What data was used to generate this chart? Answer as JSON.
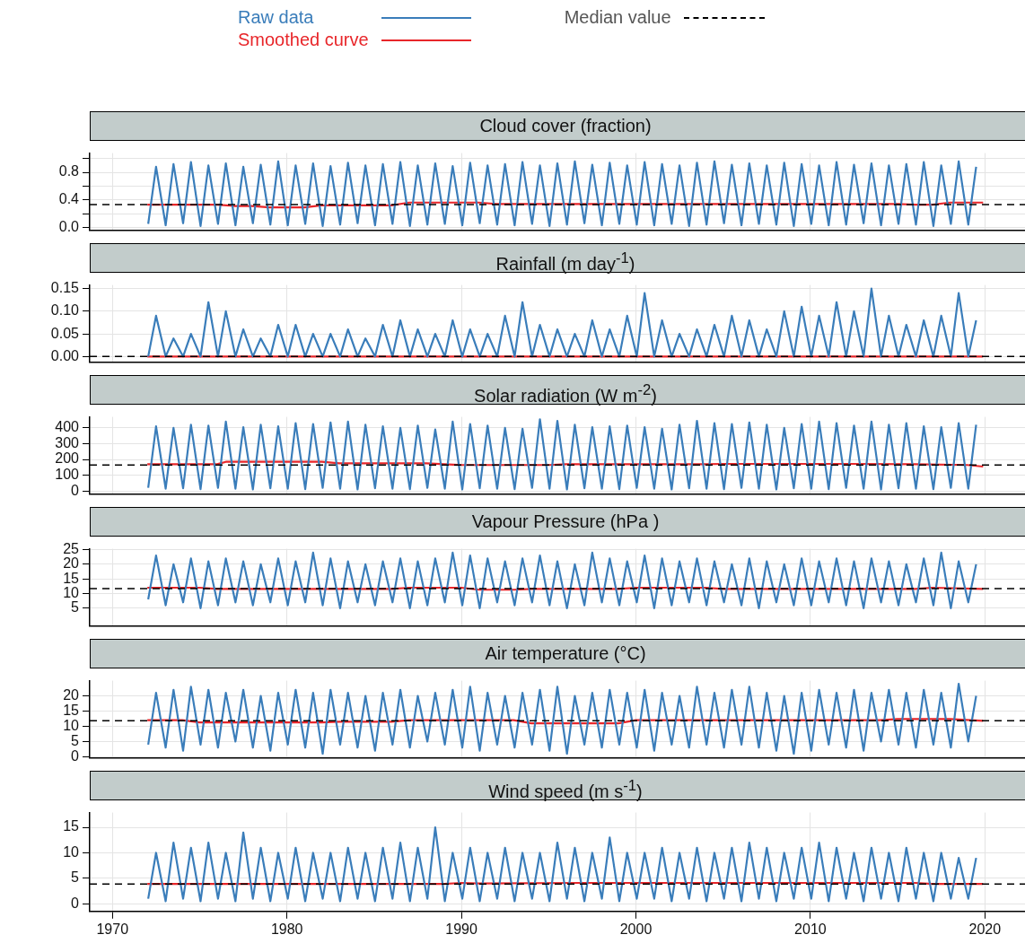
{
  "chart_data": [
    {
      "type": "line",
      "title": "Cloud cover (fraction)",
      "legend": "top",
      "grid": true,
      "tick_labels": "y",
      "xlim": [
        1968.7,
        2022.3
      ],
      "xticks": [
        1970,
        1980,
        1990,
        2000,
        2010,
        2020
      ],
      "ylim": [
        -0.04,
        1.08
      ],
      "yticks": [
        {
          "value": 0,
          "label": "0.0"
        },
        {
          "value": 0.2,
          "label": null
        },
        {
          "value": 0.4,
          "label": "0.4"
        },
        {
          "value": 0.6,
          "label": null
        },
        {
          "value": 0.8,
          "label": "0.8"
        },
        {
          "value": 1.0,
          "label": null
        }
      ],
      "x": [
        1972.05,
        1972.5,
        1973.05,
        1973.5,
        1974.05,
        1974.5,
        1975.05,
        1975.5,
        1976.05,
        1976.5,
        1977.05,
        1977.5,
        1978.05,
        1978.5,
        1979.05,
        1979.5,
        1980.05,
        1980.5,
        1981.05,
        1981.5,
        1982.05,
        1982.5,
        1983.05,
        1983.5,
        1984.05,
        1984.5,
        1985.05,
        1985.5,
        1986.05,
        1986.5,
        1987.05,
        1987.5,
        1988.05,
        1988.5,
        1989.05,
        1989.5,
        1990.05,
        1990.5,
        1991.05,
        1991.5,
        1992.05,
        1992.5,
        1993.05,
        1993.5,
        1994.05,
        1994.5,
        1995.05,
        1995.5,
        1996.05,
        1996.5,
        1997.05,
        1997.5,
        1998.05,
        1998.5,
        1999.05,
        1999.5,
        2000.05,
        2000.5,
        2001.05,
        2001.5,
        2002.05,
        2002.5,
        2003.05,
        2003.5,
        2004.05,
        2004.5,
        2005.05,
        2005.5,
        2006.05,
        2006.5,
        2007.05,
        2007.5,
        2008.05,
        2008.5,
        2009.05,
        2009.5,
        2010.05,
        2010.5,
        2011.05,
        2011.5,
        2012.05,
        2012.5,
        2013.05,
        2013.5,
        2014.05,
        2014.5,
        2015.05,
        2015.5,
        2016.05,
        2016.5,
        2017.05,
        2017.5,
        2018.05,
        2018.5,
        2019.05,
        2019.5
      ],
      "series": [
        {
          "name": "Raw data",
          "color": "#3a7dba",
          "values": [
            0.05,
            0.88,
            0.03,
            0.92,
            0.06,
            0.95,
            0.02,
            0.9,
            0.05,
            0.93,
            0.03,
            0.88,
            0.06,
            0.91,
            0.04,
            0.96,
            0.03,
            0.9,
            0.05,
            0.93,
            0.02,
            0.89,
            0.04,
            0.94,
            0.06,
            0.9,
            0.03,
            0.92,
            0.05,
            0.95,
            0.02,
            0.9,
            0.04,
            0.93,
            0.05,
            0.89,
            0.03,
            0.94,
            0.06,
            0.9,
            0.04,
            0.92,
            0.03,
            0.95,
            0.05,
            0.9,
            0.02,
            0.93,
            0.04,
            0.96,
            0.06,
            0.91,
            0.03,
            0.94,
            0.05,
            0.9,
            0.04,
            0.95,
            0.03,
            0.92,
            0.05,
            0.9,
            0.02,
            0.94,
            0.04,
            0.96,
            0.06,
            0.91,
            0.03,
            0.93,
            0.05,
            0.9,
            0.04,
            0.94,
            0.02,
            0.92,
            0.05,
            0.9,
            0.03,
            0.95,
            0.04,
            0.91,
            0.06,
            0.93,
            0.03,
            0.9,
            0.05,
            0.92,
            0.04,
            0.95,
            0.02,
            0.9,
            0.05,
            0.96,
            0.04,
            0.88
          ]
        },
        {
          "name": "Smoothed curve",
          "color": "#e8262a",
          "x": [
            1972,
            1976,
            1977,
            1978,
            1979,
            1981,
            1982,
            1986,
            1987,
            1991,
            1992,
            2015,
            2016,
            2017,
            2018,
            2019.9
          ],
          "values": [
            0.33,
            0.33,
            0.31,
            0.31,
            0.29,
            0.29,
            0.32,
            0.32,
            0.36,
            0.36,
            0.34,
            0.34,
            0.33,
            0.33,
            0.36,
            0.36
          ]
        }
      ],
      "ref_lines": [
        {
          "axis": "y",
          "value": 0.33,
          "label": "Median value",
          "color": "#000000",
          "line_style": "dashed"
        }
      ]
    },
    {
      "type": "line",
      "title": "Rainfall (m day$^{-1}$)",
      "grid": true,
      "tick_labels": "y",
      "xlim": [
        1968.7,
        2022.3
      ],
      "xticks": [
        1970,
        1980,
        1990,
        2000,
        2010,
        2020
      ],
      "ylim": [
        -0.012,
        0.158
      ],
      "yticks": [
        {
          "value": 0,
          "label": "0.00"
        },
        {
          "value": 0.05,
          "label": "0.05"
        },
        {
          "value": 0.1,
          "label": "0.10"
        },
        {
          "value": 0.15,
          "label": "0.15"
        }
      ],
      "x": [
        1972.05,
        1972.5,
        1973.05,
        1973.5,
        1974.05,
        1974.5,
        1975.05,
        1975.5,
        1976.05,
        1976.5,
        1977.05,
        1977.5,
        1978.05,
        1978.5,
        1979.05,
        1979.5,
        1980.05,
        1980.5,
        1981.05,
        1981.5,
        1982.05,
        1982.5,
        1983.05,
        1983.5,
        1984.05,
        1984.5,
        1985.05,
        1985.5,
        1986.05,
        1986.5,
        1987.05,
        1987.5,
        1988.05,
        1988.5,
        1989.05,
        1989.5,
        1990.05,
        1990.5,
        1991.05,
        1991.5,
        1992.05,
        1992.5,
        1993.05,
        1993.5,
        1994.05,
        1994.5,
        1995.05,
        1995.5,
        1996.05,
        1996.5,
        1997.05,
        1997.5,
        1998.05,
        1998.5,
        1999.05,
        1999.5,
        2000.05,
        2000.5,
        2001.05,
        2001.5,
        2002.05,
        2002.5,
        2003.05,
        2003.5,
        2004.05,
        2004.5,
        2005.05,
        2005.5,
        2006.05,
        2006.5,
        2007.05,
        2007.5,
        2008.05,
        2008.5,
        2009.05,
        2009.5,
        2010.05,
        2010.5,
        2011.05,
        2011.5,
        2012.05,
        2012.5,
        2013.05,
        2013.5,
        2014.05,
        2014.5,
        2015.05,
        2015.5,
        2016.05,
        2016.5,
        2017.05,
        2017.5,
        2018.05,
        2018.5,
        2019.05,
        2019.5
      ],
      "series": [
        {
          "color": "#3a7dba",
          "values": [
            0,
            0.09,
            0,
            0.04,
            0,
            0.05,
            0,
            0.12,
            0,
            0.1,
            0,
            0.06,
            0,
            0.04,
            0,
            0.07,
            0,
            0.07,
            0,
            0.05,
            0,
            0.05,
            0,
            0.06,
            0,
            0.04,
            0,
            0.07,
            0,
            0.08,
            0,
            0.06,
            0,
            0.05,
            0,
            0.08,
            0,
            0.06,
            0,
            0.05,
            0,
            0.09,
            0,
            0.12,
            0,
            0.07,
            0,
            0.06,
            0,
            0.05,
            0,
            0.08,
            0,
            0.06,
            0,
            0.09,
            0,
            0.14,
            0,
            0.08,
            0,
            0.05,
            0,
            0.06,
            0,
            0.07,
            0,
            0.09,
            0,
            0.08,
            0,
            0.06,
            0,
            0.1,
            0,
            0.11,
            0,
            0.09,
            0,
            0.12,
            0,
            0.1,
            0,
            0.15,
            0,
            0.09,
            0,
            0.07,
            0,
            0.08,
            0,
            0.09,
            0,
            0.14,
            0,
            0.08
          ]
        },
        {
          "color": "#e8262a",
          "x": [
            1972,
            2019.9
          ],
          "values": [
            0,
            0
          ]
        }
      ],
      "ref_lines": [
        {
          "axis": "y",
          "value": 0,
          "color": "#000000",
          "line_style": "dashed"
        }
      ]
    },
    {
      "type": "line",
      "title": "Solar radiation (W m$^{-2}$)",
      "grid": true,
      "tick_labels": "y",
      "xlim": [
        1968.7,
        2022.3
      ],
      "xticks": [
        1970,
        1980,
        1990,
        2000,
        2010,
        2020
      ],
      "ylim": [
        -18,
        470
      ],
      "yticks": [
        0,
        100,
        200,
        300,
        400
      ],
      "x": [
        1972.05,
        1972.5,
        1973.05,
        1973.5,
        1974.05,
        1974.5,
        1975.05,
        1975.5,
        1976.05,
        1976.5,
        1977.05,
        1977.5,
        1978.05,
        1978.5,
        1979.05,
        1979.5,
        1980.05,
        1980.5,
        1981.05,
        1981.5,
        1982.05,
        1982.5,
        1983.05,
        1983.5,
        1984.05,
        1984.5,
        1985.05,
        1985.5,
        1986.05,
        1986.5,
        1987.05,
        1987.5,
        1988.05,
        1988.5,
        1989.05,
        1989.5,
        1990.05,
        1990.5,
        1991.05,
        1991.5,
        1992.05,
        1992.5,
        1993.05,
        1993.5,
        1994.05,
        1994.5,
        1995.05,
        1995.5,
        1996.05,
        1996.5,
        1997.05,
        1997.5,
        1998.05,
        1998.5,
        1999.05,
        1999.5,
        2000.05,
        2000.5,
        2001.05,
        2001.5,
        2002.05,
        2002.5,
        2003.05,
        2003.5,
        2004.05,
        2004.5,
        2005.05,
        2005.5,
        2006.05,
        2006.5,
        2007.05,
        2007.5,
        2008.05,
        2008.5,
        2009.05,
        2009.5,
        2010.05,
        2010.5,
        2011.05,
        2011.5,
        2012.05,
        2012.5,
        2013.05,
        2013.5,
        2014.05,
        2014.5,
        2015.05,
        2015.5,
        2016.05,
        2016.5,
        2017.05,
        2017.5,
        2018.05,
        2018.5,
        2019.05,
        2019.5
      ],
      "series": [
        {
          "color": "#3a7dba",
          "values": [
            20,
            410,
            15,
            400,
            18,
            420,
            12,
            415,
            20,
            440,
            15,
            405,
            10,
            420,
            18,
            410,
            15,
            430,
            12,
            425,
            20,
            435,
            15,
            440,
            10,
            420,
            18,
            410,
            15,
            400,
            12,
            415,
            20,
            390,
            15,
            440,
            10,
            425,
            18,
            415,
            15,
            400,
            12,
            395,
            20,
            455,
            15,
            445,
            10,
            420,
            18,
            405,
            15,
            410,
            12,
            415,
            20,
            405,
            15,
            395,
            10,
            420,
            18,
            445,
            15,
            430,
            12,
            425,
            20,
            435,
            15,
            420,
            10,
            400,
            18,
            425,
            15,
            440,
            12,
            430,
            20,
            415,
            15,
            440,
            10,
            420,
            18,
            430,
            15,
            410,
            12,
            405,
            20,
            430,
            15,
            420
          ]
        },
        {
          "color": "#e8262a",
          "x": [
            1972,
            1976,
            1976.5,
            1982,
            1983,
            1988,
            1990,
            1995,
            1996,
            2004,
            2005,
            2012,
            2016,
            2019,
            2019.9
          ],
          "values": [
            170,
            170,
            185,
            185,
            175,
            175,
            165,
            165,
            170,
            170,
            172,
            172,
            170,
            165,
            155
          ]
        }
      ],
      "ref_lines": [
        {
          "axis": "y",
          "value": 165,
          "color": "#000000",
          "line_style": "dashed"
        }
      ]
    },
    {
      "type": "line",
      "title": "Vapour Pressure (hPa )",
      "grid": true,
      "tick_labels": "y",
      "xlim": [
        1968.7,
        2022.3
      ],
      "xticks": [
        1970,
        1980,
        1990,
        2000,
        2010,
        2020
      ],
      "ylim": [
        -1,
        25.3
      ],
      "yticks": [
        5,
        10,
        15,
        20,
        25
      ],
      "x": [
        1972.05,
        1972.5,
        1973.05,
        1973.5,
        1974.05,
        1974.5,
        1975.05,
        1975.5,
        1976.05,
        1976.5,
        1977.05,
        1977.5,
        1978.05,
        1978.5,
        1979.05,
        1979.5,
        1980.05,
        1980.5,
        1981.05,
        1981.5,
        1982.05,
        1982.5,
        1983.05,
        1983.5,
        1984.05,
        1984.5,
        1985.05,
        1985.5,
        1986.05,
        1986.5,
        1987.05,
        1987.5,
        1988.05,
        1988.5,
        1989.05,
        1989.5,
        1990.05,
        1990.5,
        1991.05,
        1991.5,
        1992.05,
        1992.5,
        1993.05,
        1993.5,
        1994.05,
        1994.5,
        1995.05,
        1995.5,
        1996.05,
        1996.5,
        1997.05,
        1997.5,
        1998.05,
        1998.5,
        1999.05,
        1999.5,
        2000.05,
        2000.5,
        2001.05,
        2001.5,
        2002.05,
        2002.5,
        2003.05,
        2003.5,
        2004.05,
        2004.5,
        2005.05,
        2005.5,
        2006.05,
        2006.5,
        2007.05,
        2007.5,
        2008.05,
        2008.5,
        2009.05,
        2009.5,
        2010.05,
        2010.5,
        2011.05,
        2011.5,
        2012.05,
        2012.5,
        2013.05,
        2013.5,
        2014.05,
        2014.5,
        2015.05,
        2015.5,
        2016.05,
        2016.5,
        2017.05,
        2017.5,
        2018.05,
        2018.5,
        2019.05,
        2019.5
      ],
      "series": [
        {
          "color": "#3a7dba",
          "values": [
            8,
            23,
            6,
            20,
            7,
            22,
            5,
            21,
            6,
            22,
            7,
            21,
            6,
            20,
            7,
            22,
            6,
            21,
            7,
            24,
            6,
            22,
            5,
            21,
            7,
            20,
            6,
            21,
            7,
            22,
            5,
            21,
            6,
            22,
            7,
            24,
            6,
            23,
            5,
            22,
            7,
            21,
            6,
            22,
            7,
            23,
            6,
            21,
            5,
            20,
            6,
            24,
            7,
            22,
            6,
            21,
            7,
            23,
            5,
            22,
            6,
            21,
            7,
            22,
            6,
            21,
            7,
            20,
            6,
            22,
            5,
            21,
            7,
            20,
            6,
            22,
            6,
            21,
            7,
            22,
            6,
            21,
            5,
            22,
            7,
            21,
            6,
            20,
            7,
            22,
            6,
            24,
            5,
            21,
            7,
            20
          ]
        },
        {
          "color": "#e8262a",
          "x": [
            1972,
            1975,
            1976,
            1986,
            1987,
            1990,
            1991,
            1993,
            1994,
            1999,
            2000,
            2004,
            2005,
            2016,
            2017,
            2019.9
          ],
          "values": [
            12,
            12,
            11.6,
            11.6,
            12,
            12,
            11.3,
            11.3,
            11.6,
            11.6,
            12,
            12,
            11.6,
            11.6,
            12,
            11.6
          ]
        }
      ],
      "ref_lines": [
        {
          "axis": "y",
          "value": 11.7,
          "color": "#000000",
          "line_style": "dashed"
        }
      ]
    },
    {
      "type": "line",
      "title": "Air temperature (°C)",
      "grid": true,
      "tick_labels": "y",
      "xlim": [
        1968.7,
        2022.3
      ],
      "xticks": [
        1970,
        1980,
        1990,
        2000,
        2010,
        2020
      ],
      "ylim": [
        -0.3,
        25
      ],
      "yticks": [
        0,
        5,
        10,
        15,
        20
      ],
      "x": [
        1972.05,
        1972.5,
        1973.05,
        1973.5,
        1974.05,
        1974.5,
        1975.05,
        1975.5,
        1976.05,
        1976.5,
        1977.05,
        1977.5,
        1978.05,
        1978.5,
        1979.05,
        1979.5,
        1980.05,
        1980.5,
        1981.05,
        1981.5,
        1982.05,
        1982.5,
        1983.05,
        1983.5,
        1984.05,
        1984.5,
        1985.05,
        1985.5,
        1986.05,
        1986.5,
        1987.05,
        1987.5,
        1988.05,
        1988.5,
        1989.05,
        1989.5,
        1990.05,
        1990.5,
        1991.05,
        1991.5,
        1992.05,
        1992.5,
        1993.05,
        1993.5,
        1994.05,
        1994.5,
        1995.05,
        1995.5,
        1996.05,
        1996.5,
        1997.05,
        1997.5,
        1998.05,
        1998.5,
        1999.05,
        1999.5,
        2000.05,
        2000.5,
        2001.05,
        2001.5,
        2002.05,
        2002.5,
        2003.05,
        2003.5,
        2004.05,
        2004.5,
        2005.05,
        2005.5,
        2006.05,
        2006.5,
        2007.05,
        2007.5,
        2008.05,
        2008.5,
        2009.05,
        2009.5,
        2010.05,
        2010.5,
        2011.05,
        2011.5,
        2012.05,
        2012.5,
        2013.05,
        2013.5,
        2014.05,
        2014.5,
        2015.05,
        2015.5,
        2016.05,
        2016.5,
        2017.05,
        2017.5,
        2018.05,
        2018.5,
        2019.05,
        2019.5
      ],
      "series": [
        {
          "color": "#3a7dba",
          "values": [
            4,
            21,
            3,
            22,
            2,
            23,
            4,
            22,
            3,
            21,
            5,
            22,
            3,
            20,
            2,
            21,
            4,
            22,
            3,
            21,
            1,
            22,
            4,
            21,
            3,
            20,
            2,
            21,
            4,
            22,
            3,
            20,
            5,
            21,
            4,
            22,
            3,
            23,
            2,
            21,
            4,
            20,
            3,
            21,
            4,
            22,
            2,
            23,
            1,
            20,
            4,
            21,
            3,
            22,
            4,
            21,
            3,
            22,
            2,
            21,
            4,
            20,
            3,
            23,
            4,
            21,
            3,
            22,
            4,
            23,
            3,
            21,
            2,
            20,
            1,
            21,
            2,
            22,
            4,
            21,
            3,
            22,
            2,
            21,
            5,
            22,
            4,
            21,
            3,
            22,
            4,
            21,
            3,
            24,
            5,
            20
          ]
        },
        {
          "color": "#e8262a",
          "x": [
            1972,
            1974,
            1975,
            1982,
            1983,
            1986,
            1987,
            1993,
            1994,
            1999,
            2000,
            2014,
            2015,
            2018,
            2019.9
          ],
          "values": [
            12,
            12,
            11.3,
            11.3,
            11.5,
            11.5,
            12,
            12,
            11,
            11,
            12,
            12,
            12.4,
            12.4,
            11.8
          ]
        }
      ],
      "ref_lines": [
        {
          "axis": "y",
          "value": 11.8,
          "color": "#000000",
          "line_style": "dashed"
        }
      ]
    },
    {
      "type": "line",
      "title": "Wind speed (m s$^{-1}$)",
      "grid": true,
      "xlim": [
        1968.7,
        2022.3
      ],
      "xticks": [
        1970,
        1980,
        1990,
        2000,
        2010,
        2020
      ],
      "ylim": [
        -1.5,
        17.9
      ],
      "yticks": [
        0,
        5,
        10,
        15
      ],
      "x": [
        1972.05,
        1972.5,
        1973.05,
        1973.5,
        1974.05,
        1974.5,
        1975.05,
        1975.5,
        1976.05,
        1976.5,
        1977.05,
        1977.5,
        1978.05,
        1978.5,
        1979.05,
        1979.5,
        1980.05,
        1980.5,
        1981.05,
        1981.5,
        1982.05,
        1982.5,
        1983.05,
        1983.5,
        1984.05,
        1984.5,
        1985.05,
        1985.5,
        1986.05,
        1986.5,
        1987.05,
        1987.5,
        1988.05,
        1988.5,
        1989.05,
        1989.5,
        1990.05,
        1990.5,
        1991.05,
        1991.5,
        1992.05,
        1992.5,
        1993.05,
        1993.5,
        1994.05,
        1994.5,
        1995.05,
        1995.5,
        1996.05,
        1996.5,
        1997.05,
        1997.5,
        1998.05,
        1998.5,
        1999.05,
        1999.5,
        2000.05,
        2000.5,
        2001.05,
        2001.5,
        2002.05,
        2002.5,
        2003.05,
        2003.5,
        2004.05,
        2004.5,
        2005.05,
        2005.5,
        2006.05,
        2006.5,
        2007.05,
        2007.5,
        2008.05,
        2008.5,
        2009.05,
        2009.5,
        2010.05,
        2010.5,
        2011.05,
        2011.5,
        2012.05,
        2012.5,
        2013.05,
        2013.5,
        2014.05,
        2014.5,
        2015.05,
        2015.5,
        2016.05,
        2016.5,
        2017.05,
        2017.5,
        2018.05,
        2018.5,
        2019.05,
        2019.5
      ],
      "series": [
        {
          "color": "#3a7dba",
          "values": [
            1,
            10,
            0.5,
            12,
            1,
            11,
            0.5,
            12,
            1,
            10,
            0.5,
            14,
            1,
            11,
            0.5,
            10,
            1,
            11,
            0.5,
            10,
            1,
            10,
            0.5,
            11,
            1,
            10,
            0.5,
            11,
            1,
            12,
            0.5,
            11,
            1,
            15,
            0.5,
            10,
            1,
            11,
            0.5,
            10,
            1,
            11,
            0.5,
            10,
            1,
            10,
            0.5,
            12,
            1,
            11,
            0.5,
            10,
            1,
            13,
            0.5,
            10,
            1,
            10,
            1,
            11,
            0.5,
            10,
            1,
            11,
            0.5,
            10,
            1,
            11,
            0.5,
            12,
            1,
            11,
            0.5,
            10,
            1,
            11,
            1,
            12,
            0.5,
            11,
            1,
            10,
            0.5,
            11,
            1,
            10,
            0.5,
            11,
            1,
            10,
            0.5,
            10,
            1,
            9,
            1,
            9
          ]
        },
        {
          "color": "#e8262a",
          "x": [
            1972,
            1989,
            1990,
            1991,
            1997,
            2016,
            2017,
            2019.9
          ],
          "values": [
            3.9,
            3.9,
            4.1,
            4,
            4.1,
            4.1,
            3.9,
            3.9
          ]
        }
      ],
      "ref_lines": [
        {
          "axis": "y",
          "value": 3.9,
          "color": "#000000",
          "line_style": "dashed"
        }
      ]
    }
  ]
}
